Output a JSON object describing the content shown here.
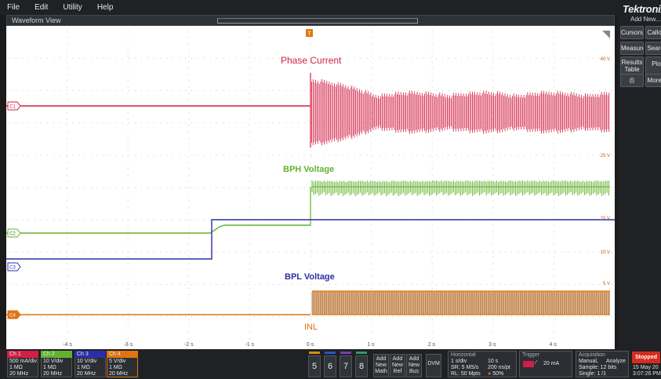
{
  "menu": [
    "File",
    "Edit",
    "Utility",
    "Help"
  ],
  "waveform_view": {
    "title": "Waveform View"
  },
  "trigger_marker": "T",
  "traces": [
    {
      "id": "C1",
      "name": "Phase Current",
      "color": "#d31f43"
    },
    {
      "id": "C2",
      "name": "BPH Voltage",
      "color": "#62b22f"
    },
    {
      "id": "C3",
      "name": "",
      "color": "#2b2ea8"
    },
    {
      "id": "C4",
      "name": "BPL Voltage",
      "color": "#e1740f"
    }
  ],
  "labels": {
    "phase_current": "Phase Current",
    "bph_voltage": "BPH Voltage",
    "bpl_voltage": "BPL Voltage",
    "inl": "INL"
  },
  "right_scale_labels": [
    "40 V",
    "25 V",
    "20 V",
    "10 V",
    "5 V"
  ],
  "time_axis": [
    "-4 s",
    "-3 s",
    "-2 s",
    "-1 s",
    "0 s",
    "1 s",
    "2 s",
    "3 s",
    "4 s"
  ],
  "side_panel": {
    "brand": "Tektronix",
    "add_new": "Add New...",
    "buttons": [
      "Cursors",
      "Callout",
      "Measure",
      "Search",
      "Results Table",
      "Plot",
      "More..."
    ]
  },
  "channels": [
    {
      "name": "Ch 1",
      "scale": "500 mA/div",
      "impedance": "1 MΩ",
      "bandwidth": "20 MHz",
      "color": "#d31f43"
    },
    {
      "name": "Ch 2",
      "scale": "10 V/div",
      "impedance": "1 MΩ",
      "bandwidth": "20 MHz",
      "color": "#62b22f"
    },
    {
      "name": "Ch 3",
      "scale": "10 V/div",
      "impedance": "1 MΩ",
      "bandwidth": "20 MHz",
      "color": "#2b2ea8"
    },
    {
      "name": "Ch 4",
      "scale": "5 V/div",
      "impedance": "1 MΩ",
      "bandwidth": "20 MHz",
      "color": "#e1740f"
    }
  ],
  "num_buttons": [
    "5",
    "6",
    "7",
    "8"
  ],
  "add_buttons": [
    {
      "line1": "Add",
      "line2": "New",
      "line3": "Math"
    },
    {
      "line1": "Add",
      "line2": "New",
      "line3": "Ref"
    },
    {
      "line1": "Add",
      "line2": "New",
      "line3": "Bus"
    }
  ],
  "dvm": "DVM",
  "horizontal": {
    "title": "Horizontal",
    "scale": "1 s/div",
    "record_time": "10 s",
    "sample_rate": "SR: 5 MS/s",
    "resolution": "200 ns/pt",
    "record_length": "RL: 50 Mpts",
    "position": "50%"
  },
  "trigger": {
    "title": "Trigger",
    "level": "20 mA"
  },
  "acquisition": {
    "title": "Acquisition",
    "mode": "Manual,",
    "type": "Analyze",
    "sample": "Sample: 12 bits",
    "single": "Single: 1 /1"
  },
  "status": {
    "state": "Stopped",
    "date": "15 May 20",
    "time": "3:07:26 PM"
  }
}
